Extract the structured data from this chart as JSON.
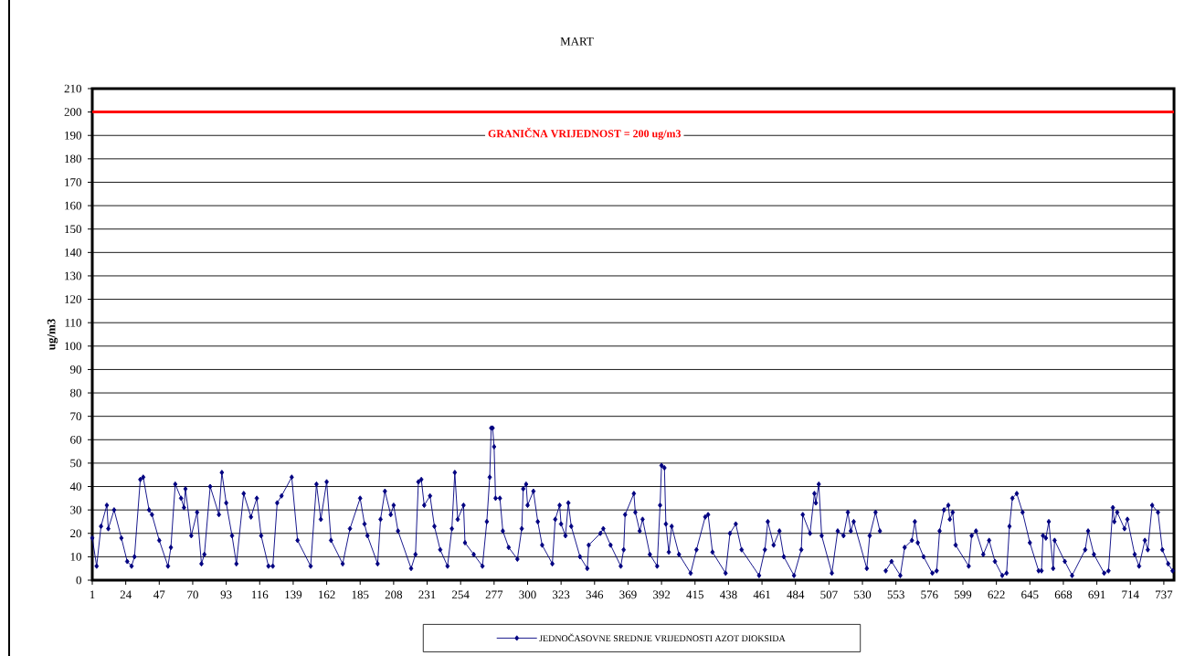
{
  "chart_data": {
    "type": "line",
    "title": "MART",
    "ylabel": "ug/m3",
    "x": [
      1,
      4,
      7,
      11,
      12,
      16,
      21,
      25,
      28,
      30,
      34,
      36,
      40,
      42,
      47,
      53,
      55,
      58,
      62,
      64,
      65,
      69,
      73,
      76,
      78,
      82,
      88,
      90,
      93,
      97,
      100,
      105,
      110,
      114,
      117,
      122,
      125,
      128,
      131,
      138,
      142,
      151,
      155,
      158,
      162,
      165,
      173,
      178,
      185,
      188,
      190,
      197,
      199,
      202,
      206,
      208,
      211,
      220,
      223,
      225,
      227,
      229,
      233,
      236,
      240,
      245,
      248,
      250,
      252,
      256,
      257,
      263,
      269,
      272,
      274,
      275,
      276,
      277,
      278,
      281,
      283,
      287,
      293,
      296,
      297,
      299,
      300,
      304,
      307,
      310,
      317,
      319,
      322,
      323,
      326,
      328,
      330,
      336,
      341,
      342,
      350,
      352,
      357,
      364,
      366,
      367,
      373,
      374,
      377,
      379,
      384,
      389,
      391,
      392,
      394,
      395,
      397,
      399,
      404,
      412,
      416,
      422,
      424,
      427,
      436,
      439,
      443,
      447,
      459,
      463,
      465,
      469,
      473,
      476,
      483,
      488,
      489,
      494,
      497,
      498,
      500,
      502,
      509,
      513,
      517,
      520,
      522,
      524,
      533,
      535,
      539,
      542,
      544,
      546,
      550,
      556,
      559,
      564,
      566,
      568,
      572,
      578,
      581,
      583,
      586,
      589,
      590,
      592,
      594,
      603,
      605,
      608,
      613,
      617,
      621,
      626,
      629,
      631,
      633,
      636,
      640,
      645,
      651,
      653,
      654,
      656,
      658,
      661,
      662,
      669,
      674,
      683,
      685,
      689,
      696,
      699,
      702,
      703,
      705,
      710,
      712,
      717,
      720,
      724,
      726,
      729,
      733,
      736,
      740,
      743
    ],
    "series": [
      {
        "name": "JEDNOČASOVNE SREDNJE VRIJEDNOSTI AZOT DIOKSIDA",
        "color": "#000080",
        "values": [
          18,
          6,
          23,
          32,
          22,
          30,
          18,
          8,
          6,
          10,
          43,
          44,
          30,
          28,
          17,
          6,
          14,
          41,
          35,
          31,
          39,
          19,
          29,
          7,
          11,
          40,
          28,
          46,
          33,
          19,
          7,
          37,
          27,
          35,
          19,
          6,
          6,
          33,
          36,
          44,
          17,
          6,
          41,
          26,
          42,
          17,
          7,
          22,
          35,
          24,
          19,
          7,
          26,
          38,
          28,
          32,
          21,
          5,
          11,
          42,
          43,
          32,
          36,
          23,
          13,
          6,
          22,
          46,
          26,
          32,
          16,
          11,
          6,
          25,
          44,
          65,
          65,
          57,
          35,
          35,
          21,
          14,
          9,
          22,
          39,
          41,
          32,
          38,
          25,
          15,
          7,
          26,
          32,
          24,
          19,
          33,
          23,
          10,
          5,
          15,
          20,
          22,
          15,
          6,
          13,
          28,
          37,
          29,
          21,
          26,
          11,
          6,
          32,
          49,
          48,
          24,
          12,
          23,
          11,
          3,
          13,
          27,
          28,
          12,
          3,
          20,
          24,
          13,
          2,
          13,
          25,
          15,
          21,
          10,
          2,
          13,
          28,
          20,
          37,
          33,
          41,
          19,
          3,
          21,
          19,
          29,
          21,
          25,
          5,
          19,
          29,
          21,
          null,
          4,
          8,
          2,
          14,
          17,
          25,
          16,
          10,
          3,
          4,
          21,
          30,
          32,
          26,
          29,
          15,
          6,
          19,
          21,
          11,
          17,
          8,
          2,
          3,
          23,
          35,
          37,
          29,
          16,
          4,
          4,
          19,
          18,
          25,
          5,
          17,
          8,
          2,
          13,
          21,
          11,
          3,
          4,
          31,
          25,
          29,
          22,
          26,
          11,
          6,
          17,
          13,
          32,
          29,
          13,
          7,
          4
        ]
      }
    ],
    "xlim": [
      1,
      744
    ],
    "ylim": [
      0,
      210
    ],
    "xticks": [
      1,
      24,
      47,
      70,
      93,
      116,
      139,
      162,
      185,
      208,
      231,
      254,
      277,
      300,
      323,
      346,
      369,
      392,
      415,
      438,
      461,
      484,
      507,
      530,
      553,
      576,
      599,
      622,
      645,
      668,
      691,
      714,
      737
    ],
    "yticks": [
      0,
      10,
      20,
      30,
      40,
      50,
      60,
      70,
      80,
      90,
      100,
      110,
      120,
      130,
      140,
      150,
      160,
      170,
      180,
      190,
      200,
      210
    ],
    "grid": "y",
    "legend": "bottom",
    "marker": "diamond",
    "line_style": "solid",
    "ref_lines": [
      {
        "axis": "y",
        "value": 200,
        "label": "GRANIČNA VRIJEDNOST = 200 ug/m3",
        "color": "#ff0000"
      }
    ]
  }
}
